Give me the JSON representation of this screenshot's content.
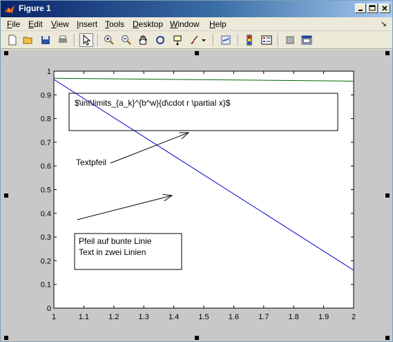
{
  "window": {
    "title": "Figure 1"
  },
  "menu": {
    "items": [
      {
        "mnemonic": "F",
        "rest": "ile"
      },
      {
        "mnemonic": "E",
        "rest": "dit"
      },
      {
        "mnemonic": "V",
        "rest": "iew"
      },
      {
        "mnemonic": "I",
        "rest": "nsert"
      },
      {
        "mnemonic": "T",
        "rest": "ools"
      },
      {
        "mnemonic": "D",
        "rest": "esktop"
      },
      {
        "mnemonic": "W",
        "rest": "indow"
      },
      {
        "mnemonic": "H",
        "rest": "elp"
      }
    ],
    "dock_glyph": "↘"
  },
  "toolbar": {
    "buttons": [
      "new-figure-icon",
      "open-file-icon",
      "save-icon",
      "print-icon",
      "edit-plot-arrow-icon",
      "zoom-in-icon",
      "zoom-out-icon",
      "pan-hand-icon",
      "rotate-3d-icon",
      "data-cursor-icon",
      "brush-icon",
      "brush-dropdown-icon",
      "link-plot-icon",
      "colorbar-icon",
      "legend-icon",
      "hide-plot-tools-icon",
      "show-plot-tools-icon"
    ]
  },
  "annotations": {
    "latex_box_text": "$\\int\\limits_{a_k}^{b^w}{d\\cdot r \\partial x}$",
    "textarrow_label": "Textpfeil",
    "two_line_box": [
      "Pfeil auf bunte Linie",
      "Text in zwei Linien"
    ]
  },
  "colors": {
    "blue_line": "#0000cc",
    "green_line": "#006600",
    "figure_bg": "#c8c8c8",
    "axes_bg": "#ffffff"
  },
  "chart_data": {
    "type": "line",
    "xlim": [
      1,
      2
    ],
    "ylim": [
      0,
      1
    ],
    "xticks": [
      "1",
      "1.1",
      "1.2",
      "1.3",
      "1.4",
      "1.5",
      "1.6",
      "1.7",
      "1.8",
      "1.9",
      "2"
    ],
    "yticks": [
      "0",
      "0.1",
      "0.2",
      "0.3",
      "0.4",
      "0.5",
      "0.6",
      "0.7",
      "0.8",
      "0.9",
      "1"
    ],
    "series": [
      {
        "color": "#0000cc",
        "x": [
          1,
          2
        ],
        "y": [
          0.965,
          0.16
        ]
      },
      {
        "color": "#006600",
        "x": [
          1,
          2
        ],
        "y": [
          0.97,
          0.958
        ]
      }
    ],
    "grid": false
  }
}
